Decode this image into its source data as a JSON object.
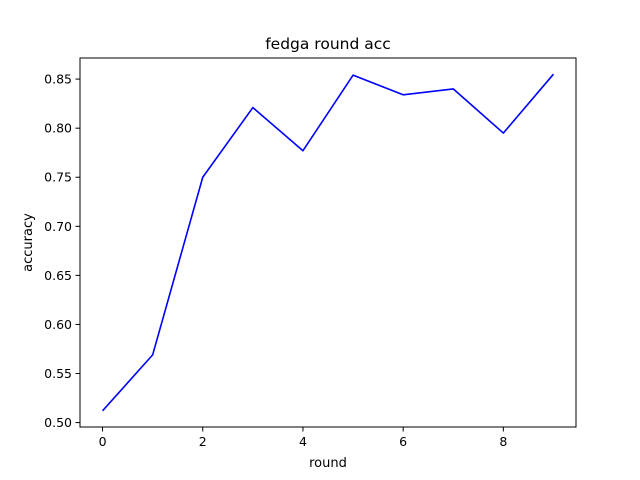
{
  "chart_data": {
    "type": "line",
    "title": "fedga round acc",
    "xlabel": "round",
    "ylabel": "accuracy",
    "xlim": [
      -0.45,
      9.45
    ],
    "ylim": [
      0.4955,
      0.8715
    ],
    "xticks": [
      0,
      2,
      4,
      6,
      8
    ],
    "yticks": [
      0.5,
      0.55,
      0.6,
      0.65,
      0.7,
      0.75,
      0.8,
      0.85
    ],
    "ytick_labels": [
      "0.50",
      "0.55",
      "0.60",
      "0.65",
      "0.70",
      "0.75",
      "0.80",
      "0.85"
    ],
    "grid": false,
    "color": "#0000ff",
    "series": [
      {
        "x": [
          0,
          1,
          2,
          3,
          4,
          5,
          6,
          7,
          8,
          9
        ],
        "values": [
          0.512,
          0.569,
          0.75,
          0.821,
          0.777,
          0.854,
          0.834,
          0.84,
          0.795,
          0.855
        ]
      }
    ]
  }
}
